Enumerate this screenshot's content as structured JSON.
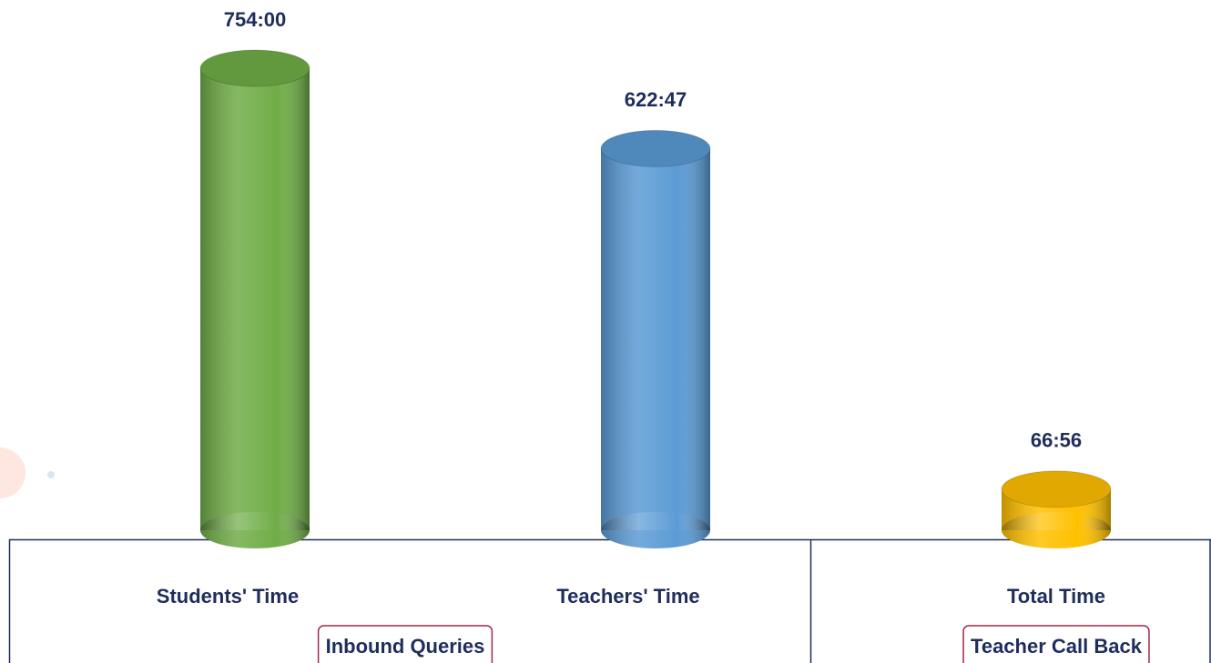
{
  "chart_data": {
    "type": "cylinder-bar",
    "categories": [
      "Students' Time",
      "Teachers' Time",
      "Total Time"
    ],
    "groups": [
      "Inbound Queries",
      "Inbound Queries",
      "Teacher Call Back"
    ],
    "values": [
      45240,
      37367,
      4016
    ],
    "value_labels": [
      "754:00",
      "622:47",
      "66:56"
    ],
    "colors": [
      "#70ad47",
      "#5b9bd5",
      "#ffc000"
    ]
  }
}
